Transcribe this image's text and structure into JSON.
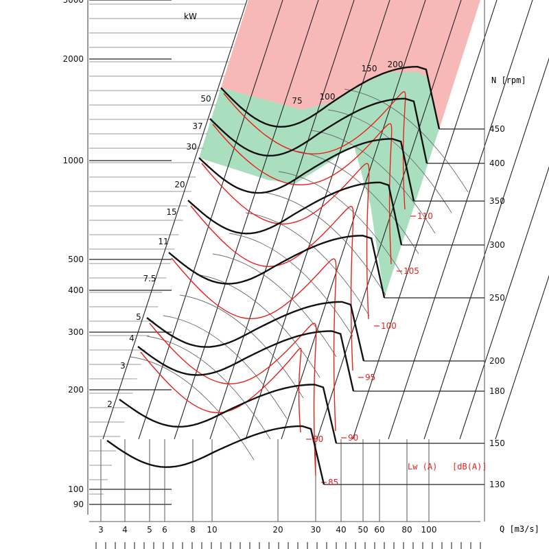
{
  "chart_data": {
    "type": "line",
    "colors": {
      "fan_curve": "#111111",
      "sound_curve": "#e8201a",
      "green_zone": "#a9dfbf",
      "pink_zone": "#f7b8b8",
      "grid": "#222222"
    },
    "y_unit_label": "kW",
    "y_ticks": [
      "3000",
      "2000",
      "1000",
      "500",
      "400",
      "300",
      "200",
      "100",
      "90"
    ],
    "y_tick_values": [
      3000,
      2000,
      1000,
      500,
      400,
      300,
      200,
      100,
      90
    ],
    "x_label": "Q [m3/s]",
    "x_ticks": [
      "3",
      "4",
      "5",
      "6",
      "8",
      "10",
      "20",
      "30",
      "40",
      "50",
      "60",
      "80",
      "100"
    ],
    "x_tick_values": [
      3,
      4,
      5,
      6,
      8,
      10,
      20,
      30,
      40,
      50,
      60,
      80,
      100
    ],
    "speed_label": "N [rpm]",
    "speed_ticks": [
      "450",
      "400",
      "350",
      "300",
      "250",
      "200",
      "180",
      "150",
      "130"
    ],
    "speed_tick_values": [
      450,
      400,
      350,
      300,
      250,
      200,
      180,
      150,
      130
    ],
    "power_labels": [
      "50",
      "37",
      "30",
      "20",
      "15",
      "11",
      "7.5",
      "5",
      "4",
      "3",
      "2"
    ],
    "power_values": [
      50,
      37,
      30,
      20,
      15,
      11,
      7.5,
      5,
      4,
      3,
      2
    ],
    "efficiency_labels": [
      "75",
      "100",
      "150",
      "200"
    ],
    "sound_label": "Lw (A)   [dB(A)]",
    "sound_levels": [
      "110",
      "105",
      "100",
      "95",
      "90",
      "85",
      "80"
    ],
    "sound_level_values": [
      110,
      105,
      100,
      95,
      90,
      85,
      80
    ],
    "series": [
      {
        "name": "450",
        "rpm": 450
      },
      {
        "name": "400",
        "rpm": 400
      },
      {
        "name": "350",
        "rpm": 350
      },
      {
        "name": "300",
        "rpm": 300
      },
      {
        "name": "250",
        "rpm": 250
      },
      {
        "name": "200",
        "rpm": 200
      },
      {
        "name": "180",
        "rpm": 180
      },
      {
        "name": "150",
        "rpm": 150
      },
      {
        "name": "130",
        "rpm": 130
      }
    ]
  }
}
